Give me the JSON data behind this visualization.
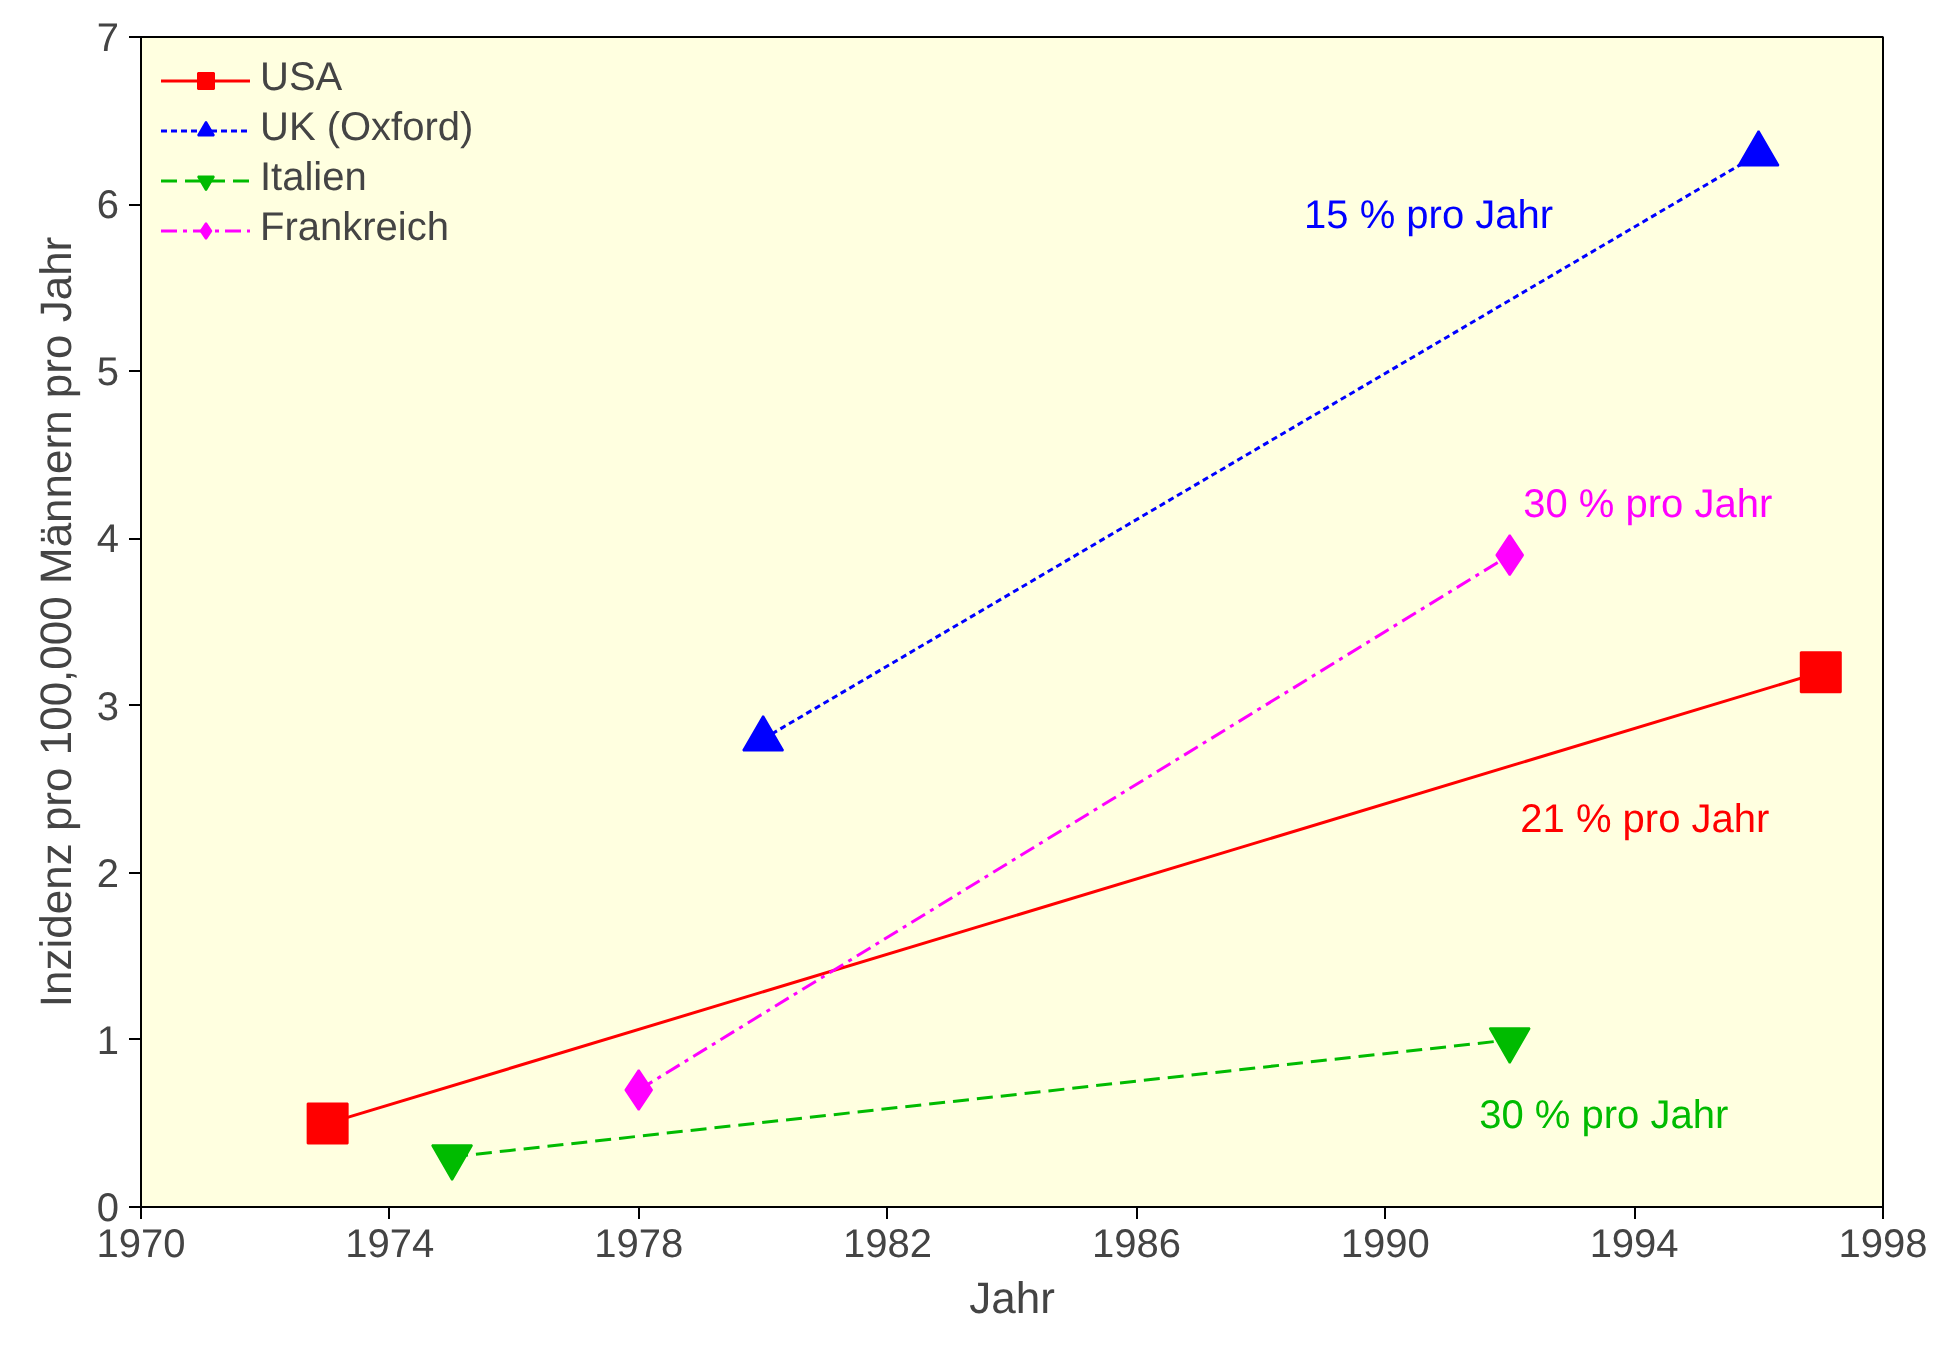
{
  "chart_data": {
    "type": "line",
    "xlabel": "Jahr",
    "ylabel": "Inzidenz pro 100,000 Männern pro Jahr",
    "xlim": [
      1970,
      1998
    ],
    "xticks": [
      1970,
      1974,
      1978,
      1982,
      1986,
      1990,
      1994,
      1998
    ],
    "ylim": [
      0,
      7
    ],
    "yticks": [
      0,
      1,
      2,
      3,
      4,
      5,
      6,
      7
    ],
    "grid": false,
    "legend": "top left",
    "series": [
      {
        "name": "USA",
        "color": "#ff0000",
        "x": [
          1973,
          1997
        ],
        "values": [
          0.5,
          3.2
        ],
        "marker": "square",
        "line_style": "solid"
      },
      {
        "name": "UK (Oxford)",
        "color": "#0000ff",
        "x": [
          1980,
          1996
        ],
        "values": [
          2.8,
          6.3
        ],
        "marker": "triangle",
        "line_style": "dotted"
      },
      {
        "name": "Italien",
        "color": "#00bb00",
        "x": [
          1975,
          1992
        ],
        "values": [
          0.3,
          1.0
        ],
        "marker": "triangle",
        "line_style": "dashed"
      },
      {
        "name": "Frankreich",
        "color": "#ff00ff",
        "x": [
          1978,
          1992
        ],
        "values": [
          0.7,
          3.9
        ],
        "marker": "diamond",
        "line_style": "dashdot"
      }
    ],
    "annotations": [
      "21 % pro Jahr",
      "15 % pro Jahr",
      "30 % pro Jahr",
      "30 % pro Jahr"
    ]
  }
}
